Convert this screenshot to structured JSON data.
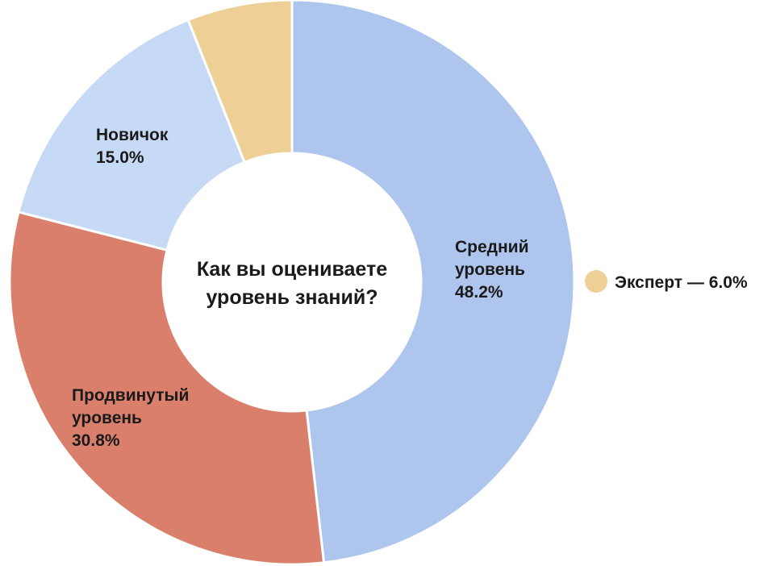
{
  "chart_data": {
    "type": "pie",
    "title": "Как вы оцениваете уровень знаний?",
    "title_lines": [
      "Как вы оцениваете",
      "уровень знаний?"
    ],
    "categories": [
      "Средний уровень",
      "Продвинутый уровень",
      "Новичок",
      "Эксперт"
    ],
    "values": [
      48.2,
      30.8,
      15.0,
      6.0
    ],
    "colors": [
      "#aec6ee",
      "#d97f6c",
      "#c7daf5",
      "#eed097"
    ],
    "donut": true,
    "slice_labels": [
      {
        "lines": [
          "Средний",
          "уровень"
        ],
        "value": "48.2%"
      },
      {
        "lines": [
          "Продвинутый",
          "уровень"
        ],
        "value": "30.8%"
      },
      {
        "lines": [
          "Новичок"
        ],
        "value": "15.0%"
      }
    ],
    "legend": [
      {
        "label": "Эксперт — 6.0%",
        "color": "#eed097"
      }
    ],
    "legend_position": "right"
  }
}
